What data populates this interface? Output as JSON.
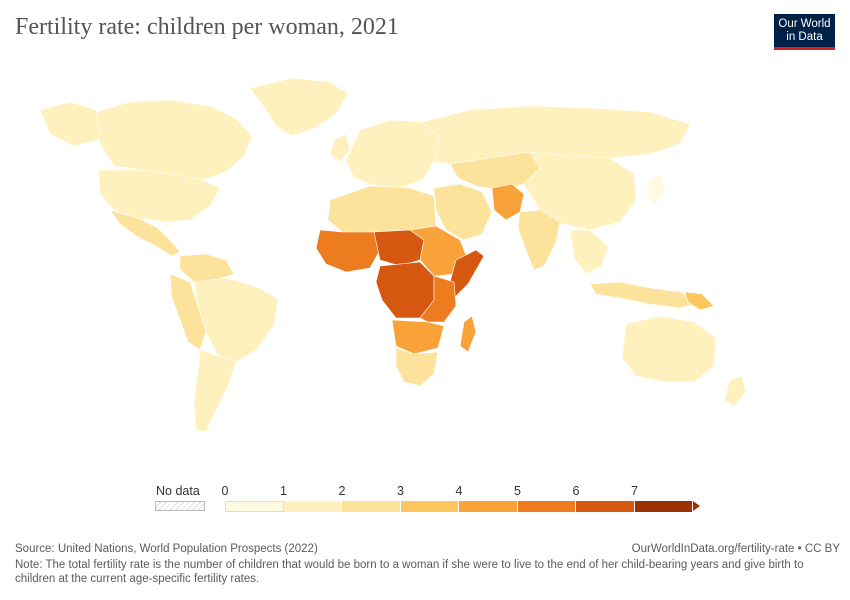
{
  "title": "Fertility rate: children per woman, 2021",
  "logo": {
    "line1": "Our World",
    "line2": "in Data"
  },
  "legend": {
    "no_data_label": "No data",
    "ticks": [
      "0",
      "1",
      "2",
      "3",
      "4",
      "5",
      "6",
      "7"
    ],
    "colors": [
      "#fffbe0",
      "#fef1bd",
      "#fde29b",
      "#fbc75e",
      "#f9a23a",
      "#ed7c20",
      "#d55710",
      "#9c3006"
    ]
  },
  "footer": {
    "source": "Source: United Nations, World Population Prospects (2022)",
    "url": "OurWorldInData.org/fertility-rate • CC BY",
    "note": "Note: The total fertility rate is the number of children that would be born to a woman if she were to live to the end of her child-bearing years and give birth to children at the current age-specific fertility rates."
  }
}
